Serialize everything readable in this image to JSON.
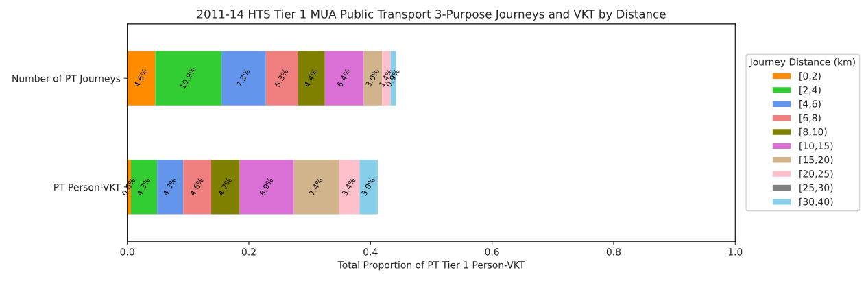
{
  "chart_data": {
    "type": "bar",
    "orientation": "horizontal",
    "stacked": true,
    "title": "2011-14 HTS Tier 1 MUA Public Transport 3-Purpose Journeys and VKT by Distance",
    "xlabel": "Total Proportion of PT Tier 1 Person-VKT",
    "legend_title": "Journey Distance (km)",
    "categories": [
      "Number of PT Journeys",
      "PT Person-VKT"
    ],
    "series": [
      {
        "name": "[0,2)",
        "color": "#ff8c00",
        "values": [
          0.046,
          0.006
        ],
        "value_labels": [
          "4.6%",
          "0.6%"
        ]
      },
      {
        "name": "[2,4)",
        "color": "#32cd32",
        "values": [
          0.109,
          0.043
        ],
        "value_labels": [
          "10.9%",
          "4.3%"
        ]
      },
      {
        "name": "[4,6)",
        "color": "#6495ed",
        "values": [
          0.073,
          0.043
        ],
        "value_labels": [
          "7.3%",
          "4.3%"
        ]
      },
      {
        "name": "[6,8)",
        "color": "#f08080",
        "values": [
          0.053,
          0.046
        ],
        "value_labels": [
          "5.3%",
          "4.6%"
        ]
      },
      {
        "name": "[8,10)",
        "color": "#808000",
        "values": [
          0.044,
          0.047
        ],
        "value_labels": [
          "4.4%",
          "4.7%"
        ]
      },
      {
        "name": "[10,15)",
        "color": "#da70d6",
        "values": [
          0.064,
          0.089
        ],
        "value_labels": [
          "6.4%",
          "8.9%"
        ]
      },
      {
        "name": "[15,20)",
        "color": "#d2b48c",
        "values": [
          0.03,
          0.074
        ],
        "value_labels": [
          "3.0%",
          "7.4%"
        ]
      },
      {
        "name": "[20,25)",
        "color": "#ffc0cb",
        "values": [
          0.014,
          0.034
        ],
        "value_labels": [
          "1.4%",
          "3.4%"
        ]
      },
      {
        "name": "[25,30)",
        "color": "#808080",
        "values": [
          null,
          null
        ],
        "value_labels": [
          null,
          null
        ]
      },
      {
        "name": "[30,40)",
        "color": "#87ceeb",
        "values": [
          0.009,
          0.03
        ],
        "value_labels": [
          "0.9%",
          "3.0%"
        ]
      }
    ],
    "xlim": [
      0.0,
      1.0
    ],
    "xticks": [
      {
        "value": 0.0,
        "label": "0.0"
      },
      0.2,
      0.4,
      0.6,
      0.8,
      {
        "value": 1.0,
        "label": "1.0"
      }
    ],
    "legend": "right"
  }
}
